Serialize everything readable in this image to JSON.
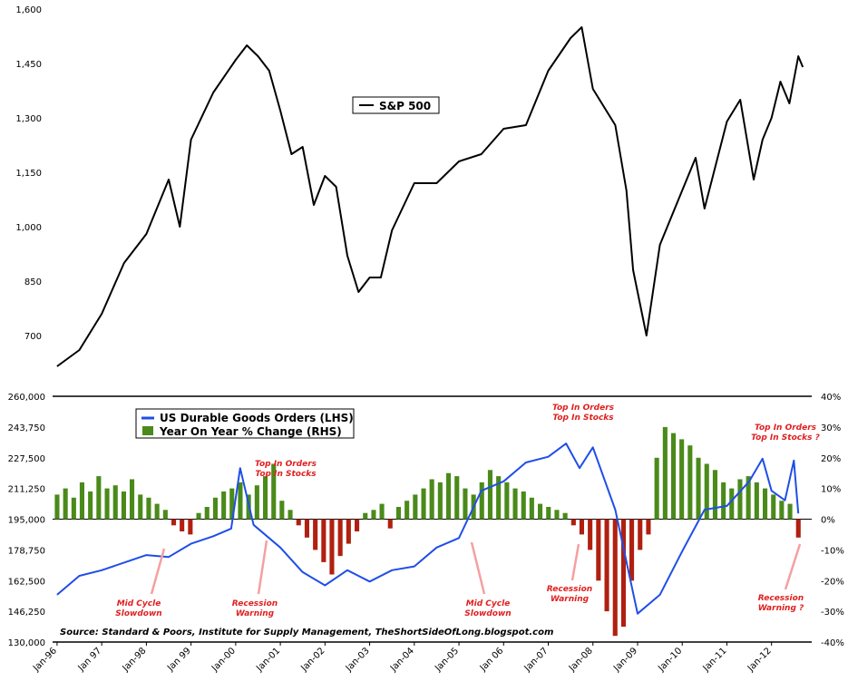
{
  "chart_data": [
    {
      "type": "line",
      "title": "",
      "series": [
        {
          "name": "S&P 500",
          "color": "#000000",
          "points": [
            [
              "1996.0",
              615
            ],
            [
              "1996.5",
              660
            ],
            [
              "1997.0",
              760
            ],
            [
              "1997.5",
              900
            ],
            [
              "1998.0",
              980
            ],
            [
              "1998.5",
              1130
            ],
            [
              "1998.75",
              1000
            ],
            [
              "1999.0",
              1240
            ],
            [
              "1999.5",
              1370
            ],
            [
              "2000.0",
              1460
            ],
            [
              "2000.25",
              1500
            ],
            [
              "2000.5",
              1470
            ],
            [
              "2000.75",
              1430
            ],
            [
              "2001.0",
              1320
            ],
            [
              "2001.25",
              1200
            ],
            [
              "2001.5",
              1220
            ],
            [
              "2001.75",
              1060
            ],
            [
              "2002.0",
              1140
            ],
            [
              "2002.25",
              1110
            ],
            [
              "2002.5",
              920
            ],
            [
              "2002.75",
              820
            ],
            [
              "2003.0",
              860
            ],
            [
              "2003.25",
              860
            ],
            [
              "2003.5",
              990
            ],
            [
              "2004.0",
              1120
            ],
            [
              "2004.5",
              1120
            ],
            [
              "2005.0",
              1180
            ],
            [
              "2005.5",
              1200
            ],
            [
              "2006.0",
              1270
            ],
            [
              "2006.5",
              1280
            ],
            [
              "2007.0",
              1430
            ],
            [
              "2007.5",
              1520
            ],
            [
              "2007.75",
              1550
            ],
            [
              "2008.0",
              1380
            ],
            [
              "2008.5",
              1280
            ],
            [
              "2008.75",
              1100
            ],
            [
              "2008.9",
              880
            ],
            [
              "2009.2",
              700
            ],
            [
              "2009.5",
              950
            ],
            [
              "2010.0",
              1100
            ],
            [
              "2010.3",
              1190
            ],
            [
              "2010.5",
              1050
            ],
            [
              "2011.0",
              1290
            ],
            [
              "2011.3",
              1350
            ],
            [
              "2011.6",
              1130
            ],
            [
              "2011.8",
              1240
            ],
            [
              "2012.0",
              1300
            ],
            [
              "2012.2",
              1400
            ],
            [
              "2012.4",
              1340
            ],
            [
              "2012.6",
              1470
            ],
            [
              "2012.7",
              1440
            ]
          ]
        }
      ],
      "legend": [
        "S&P 500"
      ],
      "y_ticks": [
        "700",
        "850",
        "1,000",
        "1,150",
        "1,300",
        "1,450",
        "1,600"
      ],
      "ylim": [
        600,
        1600
      ]
    },
    {
      "type": "bar+line",
      "series": [
        {
          "name": "US Durable Goods Orders (LHS)",
          "color": "#1f4ee8",
          "axis": "left",
          "points": [
            [
              "1996.0",
              155000
            ],
            [
              "1996.5",
              165000
            ],
            [
              "1997.0",
              168000
            ],
            [
              "1997.5",
              172000
            ],
            [
              "1998.0",
              176000
            ],
            [
              "1998.5",
              175000
            ],
            [
              "1999.0",
              182000
            ],
            [
              "1999.5",
              186000
            ],
            [
              "1999.9",
              190000
            ],
            [
              "2000.1",
              222000
            ],
            [
              "2000.4",
              192000
            ],
            [
              "2001.0",
              180000
            ],
            [
              "2001.5",
              167000
            ],
            [
              "2002.0",
              160000
            ],
            [
              "2002.5",
              168000
            ],
            [
              "2003.0",
              162000
            ],
            [
              "2003.5",
              168000
            ],
            [
              "2004.0",
              170000
            ],
            [
              "2004.5",
              180000
            ],
            [
              "2005.0",
              185000
            ],
            [
              "2005.5",
              210000
            ],
            [
              "2006.0",
              215000
            ],
            [
              "2006.5",
              225000
            ],
            [
              "2007.0",
              228000
            ],
            [
              "2007.4",
              235000
            ],
            [
              "2007.7",
              222000
            ],
            [
              "2008.0",
              233000
            ],
            [
              "2008.5",
              200000
            ],
            [
              "2009.0",
              145000
            ],
            [
              "2009.5",
              155000
            ],
            [
              "2010.0",
              178000
            ],
            [
              "2010.5",
              200000
            ],
            [
              "2011.0",
              202000
            ],
            [
              "2011.5",
              215000
            ],
            [
              "2011.8",
              227000
            ],
            [
              "2012.0",
              210000
            ],
            [
              "2012.3",
              205000
            ],
            [
              "2012.5",
              226000
            ],
            [
              "2012.6",
              198000
            ]
          ]
        },
        {
          "name": "Year On Year % Change (RHS)",
          "color_positive": "#4a8a1a",
          "color_negative": "#b02010",
          "axis": "right",
          "values": [
            8,
            10,
            7,
            12,
            9,
            14,
            10,
            11,
            9,
            13,
            8,
            7,
            5,
            3,
            -2,
            -4,
            -5,
            2,
            4,
            7,
            9,
            10,
            12,
            8,
            11,
            14,
            18,
            6,
            3,
            -2,
            -6,
            -10,
            -14,
            -18,
            -12,
            -8,
            -4,
            2,
            3,
            5,
            -3,
            4,
            6,
            8,
            10,
            13,
            12,
            15,
            14,
            10,
            8,
            12,
            16,
            14,
            12,
            10,
            9,
            7,
            5,
            4,
            3,
            2,
            -2,
            -5,
            -10,
            -20,
            -30,
            -38,
            -35,
            -20,
            -10,
            -5,
            20,
            30,
            28,
            26,
            24,
            20,
            18,
            16,
            12,
            10,
            13,
            14,
            12,
            10,
            8,
            6,
            5,
            -6
          ]
        }
      ],
      "legend": [
        "US Durable Goods Orders (LHS)",
        "Year On Year % Change (RHS)"
      ],
      "y_left_ticks": [
        "130,000",
        "146,250",
        "162,500",
        "178,750",
        "195,000",
        "211,250",
        "227,500",
        "243,750",
        "260,000"
      ],
      "ylim_left": [
        130000,
        260000
      ],
      "y_right_ticks": [
        "-40%",
        "-30%",
        "-20%",
        "-10%",
        "0%",
        "10%",
        "20%",
        "30%",
        "40%"
      ],
      "ylim_right": [
        -40,
        40
      ],
      "x_ticks": [
        "Jan-96",
        "Jan 97",
        "Jan-98",
        "Jan 99",
        "Jan-00",
        "Jan-01",
        "Jan-02",
        "Jan-03",
        "Jan-04",
        "Jan-05",
        "Jan 06",
        "Jan-07",
        "Jan-08",
        "Jan-09",
        "Jan-10",
        "Jan-11",
        "Jan-12"
      ],
      "xlim": [
        1995.9,
        2012.9
      ],
      "annotations": [
        {
          "lines": [
            "Top In Orders",
            "Top In Stocks"
          ],
          "at": "2000.1"
        },
        {
          "lines": [
            "Top In Orders",
            "Top In Stocks"
          ],
          "at": "2007.4"
        },
        {
          "lines": [
            "Top In Orders",
            "Top In Stocks ?"
          ],
          "at": "2012.5"
        },
        {
          "lines": [
            "Mid Cycle",
            "Slowdown"
          ],
          "at": "1998.3"
        },
        {
          "lines": [
            "Recession",
            "Warning"
          ],
          "at": "2000.8"
        },
        {
          "lines": [
            "Mid Cycle",
            "Slowdown"
          ],
          "at": "2005.1"
        },
        {
          "lines": [
            "Recession",
            "Warning"
          ],
          "at": "2007.5"
        },
        {
          "lines": [
            "Recession",
            "Warning ?"
          ],
          "at": "2012.3"
        }
      ],
      "source": "Source: Standard & Poors, Institute for Supply Management, TheShortSideOfLong.blogspot.com"
    }
  ]
}
